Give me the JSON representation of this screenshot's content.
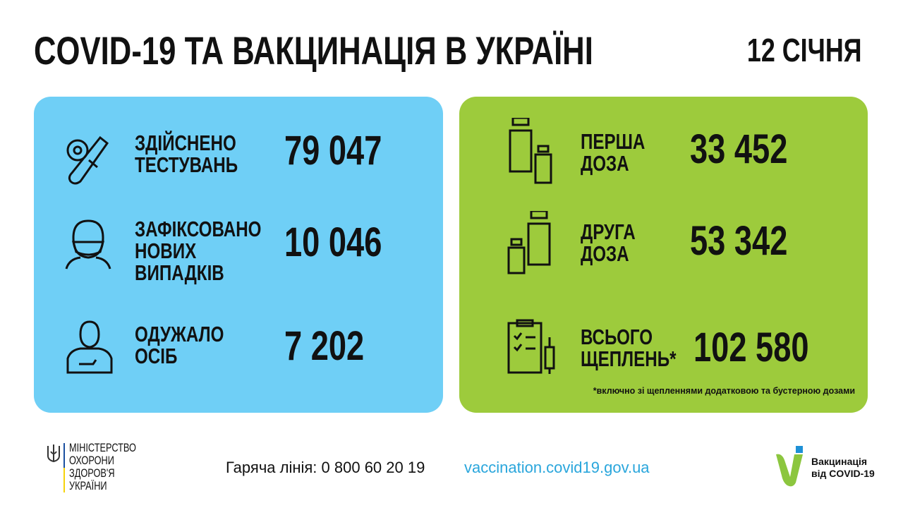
{
  "header": {
    "title": "COVID-19 ТА ВАКЦИНАЦІЯ В УКРАЇНІ",
    "date": "12 СІЧНЯ"
  },
  "colors": {
    "blue_panel": "#6fcff6",
    "green_panel": "#9dcb3c",
    "link": "#2aa6dc"
  },
  "covid": [
    {
      "icon": "test-tube-icon",
      "label_lines": [
        "ЗДІЙСНЕНО",
        "ТЕСТУВАНЬ"
      ],
      "value": "79 047"
    },
    {
      "icon": "masked-person-icon",
      "label_lines": [
        "ЗАФІКСОВАНО",
        "НОВИХ",
        "ВИПАДКІВ"
      ],
      "value": "10 046"
    },
    {
      "icon": "recovered-person-icon",
      "label_lines": [
        "ОДУЖАЛО",
        "ОСІБ"
      ],
      "value": "7 202"
    }
  ],
  "vaccination": [
    {
      "icon": "vaccine-vials-icon",
      "label_lines": [
        "ПЕРША",
        "ДОЗА"
      ],
      "value": "33 452"
    },
    {
      "icon": "vaccine-vials-icon",
      "label_lines": [
        "ДРУГА",
        "ДОЗА"
      ],
      "value": "53 342"
    },
    {
      "icon": "checklist-syringe-icon",
      "label_lines": [
        "ВСЬОГО",
        "ЩЕПЛЕНЬ*"
      ],
      "value": "102 580"
    }
  ],
  "note": "*включно зі щепленнями додатковою та бустерною дозами",
  "footer": {
    "hotline": "Гаряча лінія: 0 800 60 20 19",
    "url": "vaccination.covid19.gov.ua",
    "ministry_lines": [
      "МІНІСТЕРСТВО",
      "ОХОРОНИ",
      "ЗДОРОВ'Я",
      "УКРАЇНИ"
    ],
    "vacc_logo_lines": [
      "Вакцинація",
      "від COVID-19"
    ]
  }
}
